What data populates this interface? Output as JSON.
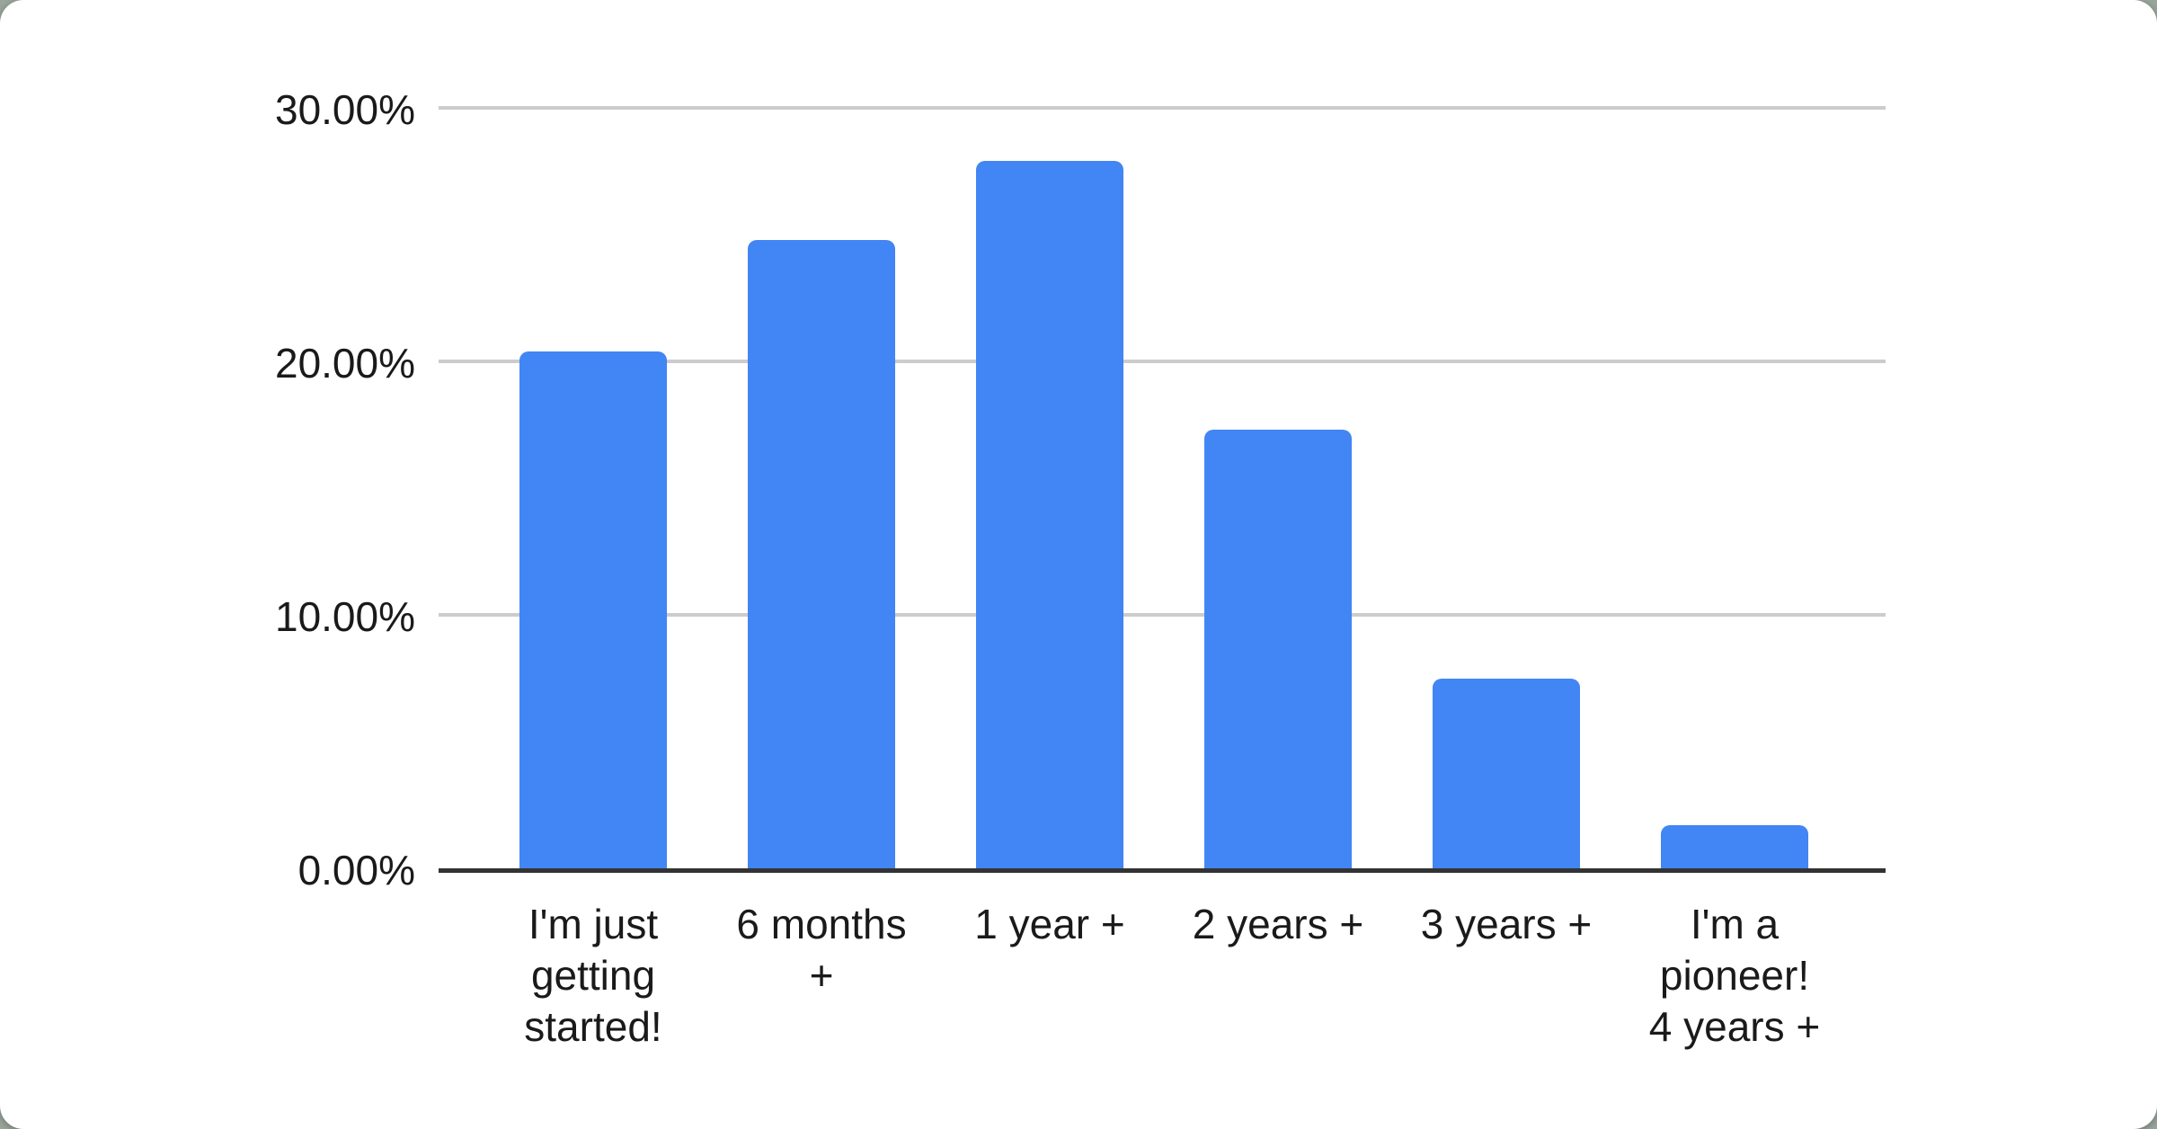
{
  "page": {
    "background_color": "#9aa59c",
    "card_background_color": "#ffffff"
  },
  "chart_data": {
    "type": "bar",
    "title": "",
    "xlabel": "",
    "ylabel": "",
    "categories": [
      "I'm just\ngetting\nstarted!",
      "6 months\n+",
      "1 year +",
      "2 years +",
      "3 years +",
      "I'm a\npioneer!\n4 years +"
    ],
    "values": [
      20.4,
      24.8,
      27.9,
      17.3,
      7.5,
      1.7
    ],
    "value_unit": "percent",
    "ylim": [
      0,
      30
    ],
    "y_ticks": [
      {
        "value": 0,
        "label": "0.00%"
      },
      {
        "value": 10,
        "label": "10.00%"
      },
      {
        "value": 20,
        "label": "20.00%"
      },
      {
        "value": 30,
        "label": "30.00%"
      }
    ],
    "grid": true,
    "legend": "none",
    "bar_color": "#4285f4",
    "gridline_color": "#cccccc",
    "axis_line_color": "#333333",
    "label_color": "#1a1a1a"
  }
}
